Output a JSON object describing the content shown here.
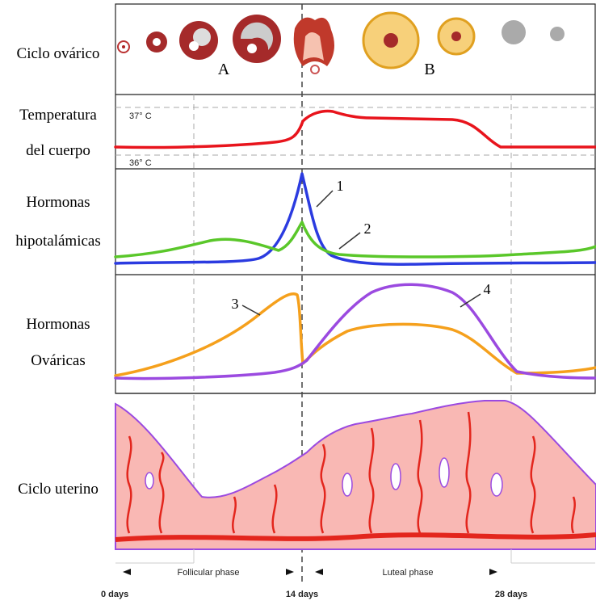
{
  "row_labels": [
    {
      "lines": [
        "Ciclo ovárico"
      ]
    },
    {
      "lines": [
        "Temperatura",
        "del cuerpo"
      ]
    },
    {
      "lines": [
        "Hormonas",
        "hipotalámicas"
      ]
    },
    {
      "lines": [
        "Hormonas",
        "Ováricas"
      ]
    },
    {
      "lines": [
        "Ciclo uterino"
      ]
    }
  ],
  "ovarian_cycle": {
    "labels": [
      "A",
      "B"
    ]
  },
  "temperature": {
    "high": "37° C",
    "low": "36° C"
  },
  "hormone_markers": [
    "1",
    "2",
    "3",
    "4"
  ],
  "phases": [
    "Follicular phase",
    "Luteal phase"
  ],
  "days": [
    "0 days",
    "14 days",
    "28 days"
  ]
}
